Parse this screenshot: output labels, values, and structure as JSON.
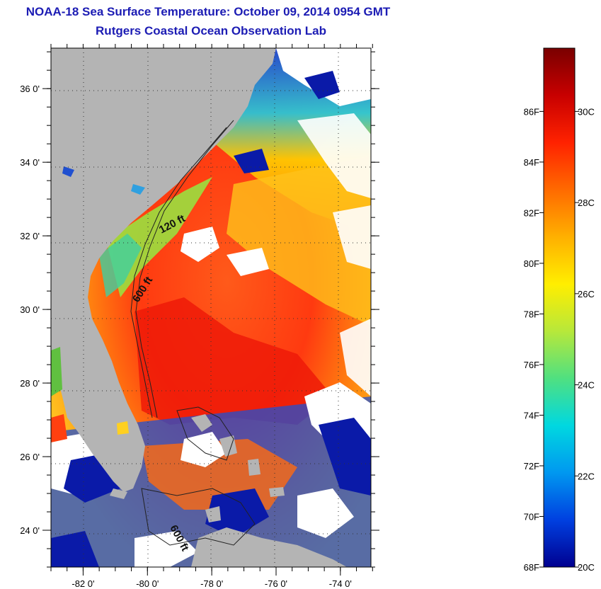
{
  "header": {
    "title": "NOAA-18 Sea Surface Temperature:  October 09, 2014 0954 GMT",
    "subtitle": "Rutgers Coastal Ocean Observation Lab"
  },
  "map": {
    "lat_ticks": [
      {
        "value": 36,
        "label": "36 0'"
      },
      {
        "value": 34,
        "label": "34 0'"
      },
      {
        "value": 32,
        "label": "32 0'"
      },
      {
        "value": 30,
        "label": "30 0'"
      },
      {
        "value": 28,
        "label": "28 0'"
      },
      {
        "value": 26,
        "label": "26 0'"
      },
      {
        "value": 24,
        "label": "24 0'"
      }
    ],
    "lon_ticks": [
      {
        "value": -82,
        "label": "-82 0'"
      },
      {
        "value": -80,
        "label": "-80 0'"
      },
      {
        "value": -78,
        "label": "-78 0'"
      },
      {
        "value": -76,
        "label": "-76 0'"
      },
      {
        "value": -74,
        "label": "-74 0'"
      }
    ],
    "lat_range": [
      23,
      37.1
    ],
    "lon_range": [
      -83,
      -73.05
    ],
    "contour_labels": [
      "120 ft",
      "600 ft",
      "600 ft"
    ],
    "colors": {
      "land": "#b4b4b4",
      "cloud": "#ffffff",
      "frame": "#000000"
    }
  },
  "colorbar": {
    "f_labels": [
      "86F",
      "84F",
      "82F",
      "80F",
      "78F",
      "76F",
      "74F",
      "72F",
      "70F",
      "68F"
    ],
    "c_labels": [
      "30C",
      "28C",
      "26C",
      "24C",
      "22C",
      "20C"
    ],
    "gradient": [
      "#7a0000",
      "#c80000",
      "#ff2200",
      "#ff6a00",
      "#ffb000",
      "#ffee00",
      "#b8e83a",
      "#50e080",
      "#00d8e0",
      "#0098f0",
      "#0040e0",
      "#000090"
    ]
  }
}
